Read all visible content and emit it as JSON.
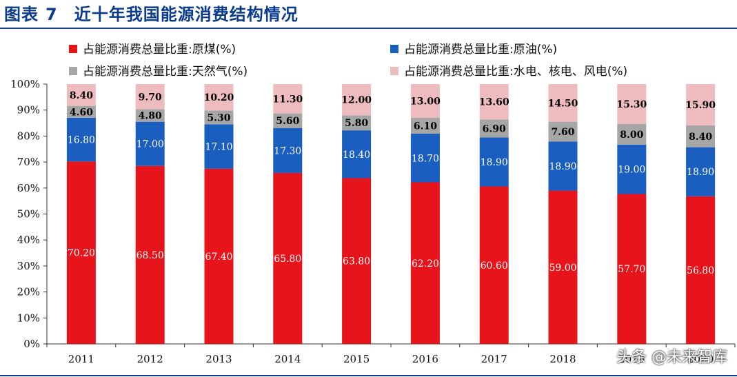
{
  "figure": {
    "label": "图表",
    "number": "7",
    "title": "近十年我国能源消费结构情况"
  },
  "watermark": "头条 @未来智库",
  "chart_data": {
    "type": "bar",
    "stacked": true,
    "categories": [
      "2011",
      "2012",
      "2013",
      "2014",
      "2015",
      "2016",
      "2017",
      "2018",
      "2019",
      "2020"
    ],
    "series": [
      {
        "name": "占能源消费总量比重:原煤(%)",
        "color": "#e8141c",
        "label_color": "#ffffff",
        "label_weight": "normal",
        "values": [
          70.2,
          68.5,
          67.4,
          65.8,
          63.8,
          62.2,
          60.6,
          59.0,
          57.7,
          56.8
        ]
      },
      {
        "name": "占能源消费总量比重:原油(%)",
        "color": "#1a5fbf",
        "label_color": "#ffffff",
        "label_weight": "normal",
        "values": [
          16.8,
          17.0,
          17.1,
          17.3,
          18.4,
          18.7,
          18.9,
          18.9,
          19.0,
          18.9
        ]
      },
      {
        "name": "占能源消费总量比重:天然气(%)",
        "color": "#a6a6a6",
        "label_color": "#000000",
        "label_weight": "bold",
        "values": [
          4.6,
          4.8,
          5.3,
          5.6,
          5.8,
          6.1,
          6.9,
          7.6,
          8.0,
          8.4
        ]
      },
      {
        "name": "占能源消费总量比重:水电、核电、风电(%)",
        "color": "#eebcbf",
        "label_color": "#000000",
        "label_weight": "bold",
        "values": [
          8.4,
          9.7,
          10.2,
          11.3,
          12.0,
          13.0,
          13.6,
          14.5,
          15.3,
          15.9
        ]
      }
    ],
    "y_ticks": [
      "0%",
      "10%",
      "20%",
      "30%",
      "40%",
      "50%",
      "60%",
      "70%",
      "80%",
      "90%",
      "100%"
    ],
    "ylim": [
      0,
      100
    ],
    "grid": false,
    "legend_position": "top"
  }
}
